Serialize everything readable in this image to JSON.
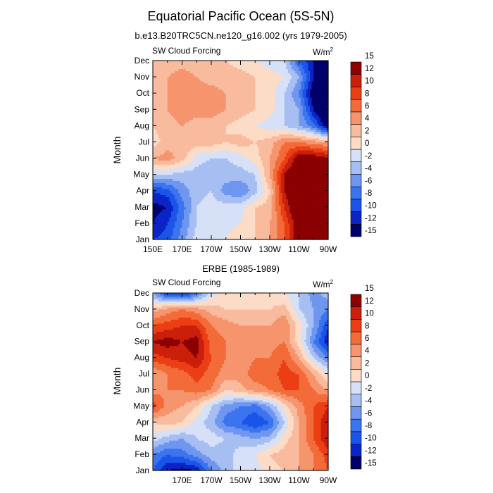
{
  "figure": {
    "title": "Equatorial Pacific Ocean (5S-5N)"
  },
  "colors": {
    "levels": [
      "#00006b",
      "#0b24c8",
      "#1a55e8",
      "#3b74ee",
      "#6f97f0",
      "#a7bef2",
      "#d6e1f7",
      "#fddcc7",
      "#f9bb9e",
      "#f6956d",
      "#f26b38",
      "#ec3e15",
      "#cb1f0c",
      "#8b0000"
    ],
    "frame": "#000000"
  },
  "chart_data": [
    {
      "type": "heatmap",
      "title": "b.e13.B20TRC5CN.ne120_g16.002 (yrs 1979-2005)",
      "subtitle_left": "SW Cloud Forcing",
      "units_base": "W/m",
      "units_exp": "2",
      "ylabel": "Month",
      "xlabel": "",
      "x_tick_labels": [
        "150E",
        "170E",
        "170W",
        "150W",
        "130W",
        "110W",
        "90W"
      ],
      "y_tick_labels": [
        "Jan",
        "Feb",
        "Mar",
        "Apr",
        "May",
        "Jun",
        "Jul",
        "Aug",
        "Sep",
        "Oct",
        "Nov",
        "Dec"
      ],
      "xlim": [
        150,
        270
      ],
      "ylim": [
        1,
        12
      ],
      "colorbar_labels": [
        "-15",
        "-12",
        "-10",
        "-8",
        "-6",
        "-4",
        "-2",
        "0",
        "2",
        "4",
        "6",
        "8",
        "10",
        "12",
        "15"
      ],
      "grid": {
        "x": [
          150,
          160,
          170,
          180,
          190,
          200,
          210,
          220,
          230,
          240,
          250,
          260,
          270
        ],
        "y": [
          "Jan",
          "Feb",
          "Mar",
          "Apr",
          "May",
          "Jun",
          "Jul",
          "Aug",
          "Sep",
          "Oct",
          "Nov",
          "Dec"
        ],
        "z": [
          [
            -10,
            -9,
            -5,
            -1,
            -1,
            0,
            2,
            2,
            4,
            8,
            14,
            16,
            15
          ],
          [
            -12,
            -10,
            -6,
            -2,
            -1,
            -1,
            0,
            2,
            4,
            8,
            14,
            16,
            14
          ],
          [
            -13,
            -12,
            -7,
            -2,
            -1,
            -1,
            -1,
            2,
            3,
            10,
            16,
            17,
            14
          ],
          [
            -10,
            -9,
            -5,
            -3,
            -2,
            -5,
            -6,
            -3,
            2,
            12,
            17,
            17,
            15
          ],
          [
            -2,
            -2,
            -3,
            -3,
            -4,
            -3,
            -3,
            -2,
            4,
            12,
            16,
            17,
            14
          ],
          [
            4,
            5,
            3,
            -1,
            -2,
            -2,
            -1,
            1,
            4,
            8,
            14,
            14,
            12
          ],
          [
            1,
            3,
            4,
            3,
            3,
            2,
            3,
            2,
            3,
            6,
            6,
            5,
            4
          ],
          [
            2,
            3,
            4,
            3,
            3,
            2,
            1,
            0,
            -1,
            -2,
            -4,
            -7,
            -14
          ],
          [
            2,
            4,
            5,
            5,
            5,
            4,
            3,
            2,
            1,
            -2,
            -4,
            -12,
            -17
          ],
          [
            2,
            4,
            5,
            5,
            5,
            4,
            3,
            2,
            1,
            -2,
            -6,
            -14,
            -17
          ],
          [
            2,
            4,
            5,
            4,
            3,
            3,
            3,
            2,
            1,
            0,
            -4,
            -12,
            -15
          ],
          [
            2,
            3,
            3,
            3,
            2,
            2,
            1,
            0,
            -1,
            -2,
            -8,
            -12,
            -14
          ]
        ]
      }
    },
    {
      "type": "heatmap",
      "title": "ERBE (1985-1989)",
      "subtitle_left": "SW Cloud Forcing",
      "units_base": "W/m",
      "units_exp": "2",
      "ylabel": "Month",
      "xlabel": "",
      "x_tick_labels": [
        "170E",
        "170W",
        "150W",
        "130W",
        "110W",
        "90W"
      ],
      "y_tick_labels": [
        "Jan",
        "Feb",
        "Mar",
        "Apr",
        "May",
        "Jun",
        "Jul",
        "Aug",
        "Sep",
        "Oct",
        "Nov",
        "Dec"
      ],
      "xlim": [
        150,
        270
      ],
      "ylim": [
        1,
        12
      ],
      "colorbar_labels": [
        "-15",
        "-12",
        "-10",
        "-8",
        "-6",
        "-4",
        "-2",
        "0",
        "2",
        "4",
        "6",
        "8",
        "10",
        "12",
        "15"
      ],
      "grid": {
        "x": [
          150,
          160,
          170,
          180,
          190,
          200,
          210,
          220,
          230,
          240,
          250,
          260,
          270
        ],
        "y": [
          "Jan",
          "Feb",
          "Mar",
          "Apr",
          "May",
          "Jun",
          "Jul",
          "Aug",
          "Sep",
          "Oct",
          "Nov",
          "Dec"
        ],
        "z": [
          [
            -8,
            -12,
            -13,
            -12,
            -6,
            -3,
            -1,
            -1,
            1,
            2,
            4,
            6,
            8
          ],
          [
            -6,
            -8,
            -7,
            -5,
            -3,
            -3,
            -1,
            0,
            2,
            3,
            4,
            6,
            9
          ],
          [
            -1,
            -3,
            -4,
            -2,
            -1,
            -2,
            -3,
            -4,
            -3,
            1,
            4,
            8,
            12
          ],
          [
            2,
            3,
            2,
            -1,
            -3,
            -7,
            -8,
            -10,
            -8,
            -2,
            4,
            8,
            12
          ],
          [
            9,
            5,
            4,
            2,
            -2,
            -5,
            -6,
            -7,
            -4,
            1,
            5,
            8,
            10
          ],
          [
            5,
            6,
            6,
            7,
            6,
            2,
            3,
            5,
            6,
            8,
            8,
            6,
            4
          ],
          [
            4,
            6,
            7,
            9,
            7,
            5,
            5,
            7,
            7,
            9,
            8,
            4,
            0
          ],
          [
            9,
            10,
            11,
            12,
            8,
            6,
            5,
            6,
            6,
            8,
            4,
            -2,
            -6
          ],
          [
            12,
            13,
            12,
            13,
            7,
            6,
            5,
            5,
            5,
            6,
            1,
            -6,
            -12
          ],
          [
            8,
            9,
            10,
            10,
            6,
            5,
            4,
            4,
            4,
            6,
            1,
            -4,
            -10
          ],
          [
            3,
            5,
            6,
            5,
            3,
            2,
            2,
            2,
            2,
            3,
            -2,
            -4,
            -6
          ],
          [
            -4,
            -10,
            -11,
            -7,
            -1,
            1,
            1,
            2,
            1,
            0,
            -2,
            -5,
            -3
          ]
        ]
      }
    }
  ]
}
